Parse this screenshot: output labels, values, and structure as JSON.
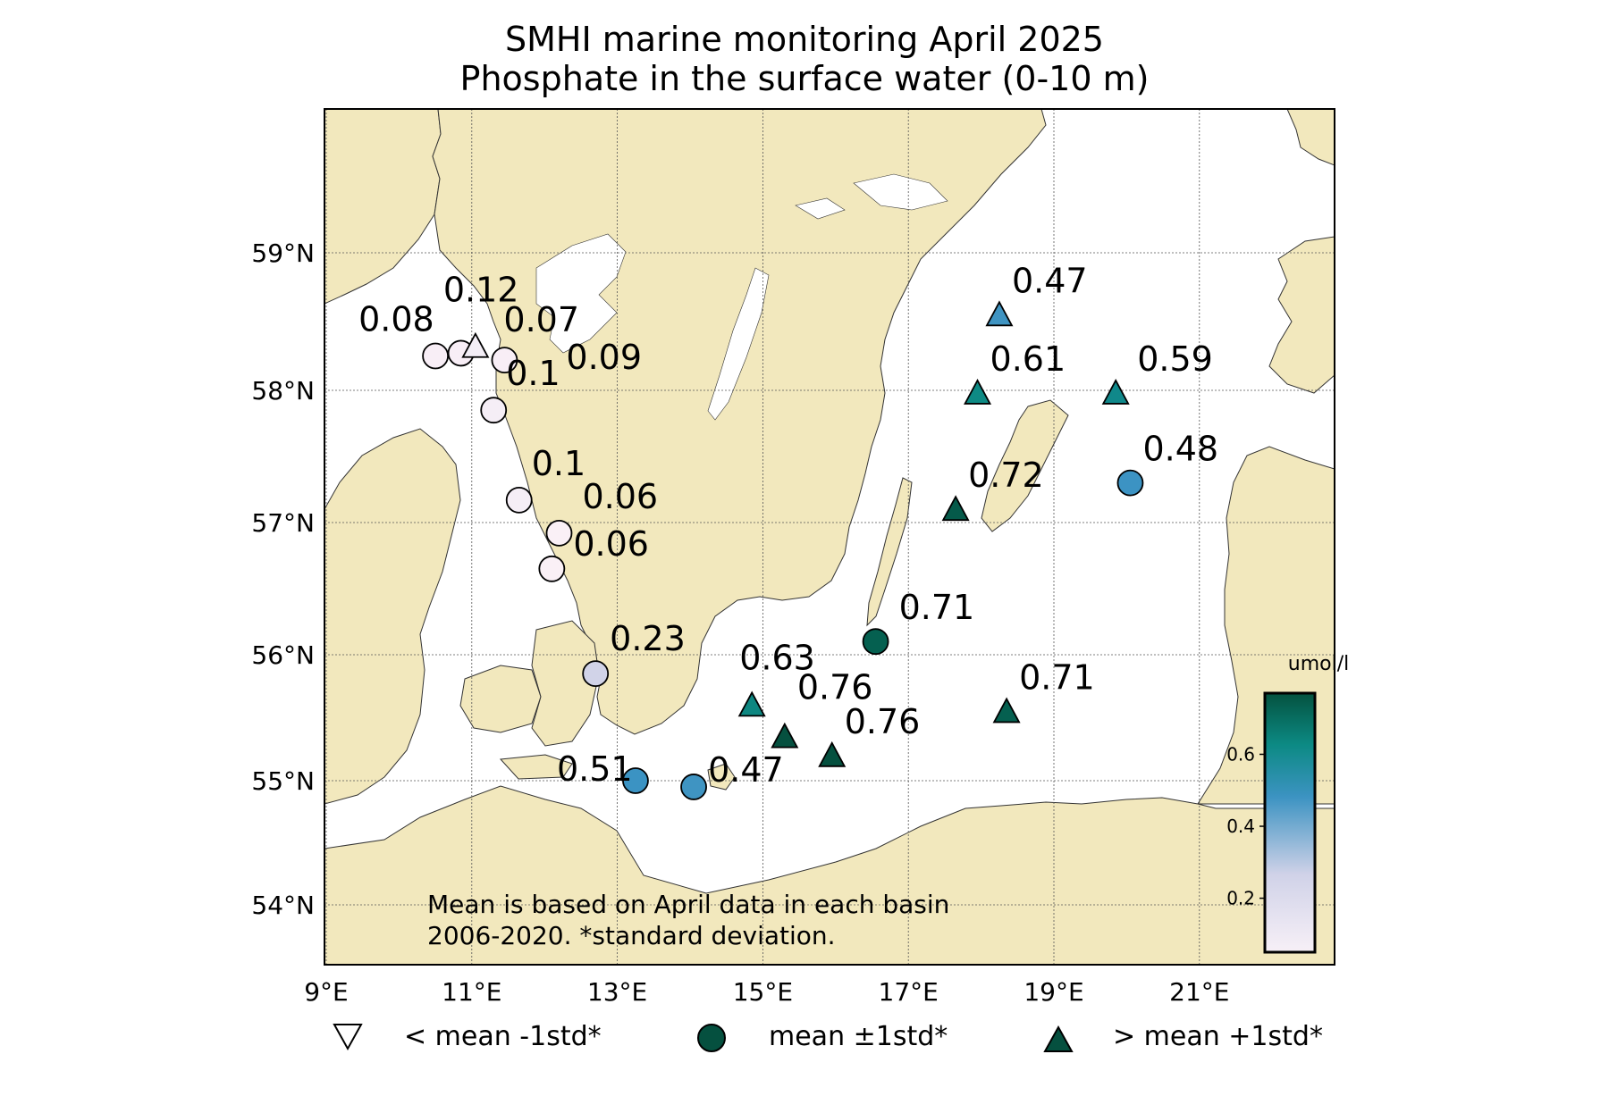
{
  "title_line1": "SMHI marine monitoring April 2025",
  "title_line2": "Phosphate in the surface water (0-10 m)",
  "axes": {
    "lon_labels": [
      "9°E",
      "11°E",
      "13°E",
      "15°E",
      "17°E",
      "19°E",
      "21°E"
    ],
    "lat_labels": [
      "54°N",
      "55°N",
      "56°N",
      "57°N",
      "58°N",
      "59°N"
    ]
  },
  "note_line1": "Mean is based on April data in each basin",
  "note_line2": "2006-2020. *standard deviation.",
  "colorbar": {
    "unit": "umol/l",
    "ticks": [
      "0.2",
      "0.4",
      "0.6"
    ],
    "colors": [
      "#f7f0f7",
      "#d0d2e8",
      "#3c93c2",
      "#0c8a84",
      "#04523f"
    ]
  },
  "legend": {
    "below": "< mean -1std*",
    "within": "mean ±1std*",
    "above": "> mean +1std*"
  },
  "colors": {
    "land": "#f2e8bd",
    "sea": "#ffffff",
    "coast": "#333333",
    "grid": "#555555"
  },
  "chart_data": {
    "type": "scatter",
    "xlim": [
      9,
      23
    ],
    "ylim": [
      53.6,
      59.8
    ],
    "grid": true,
    "stations": [
      {
        "lon": 10.5,
        "lat": 58.25,
        "value": "0.08",
        "marker": "circle",
        "color": "#f8eef6"
      },
      {
        "lon": 10.85,
        "lat": 58.27,
        "value": "",
        "marker": "circle",
        "color": "#f8eef6"
      },
      {
        "lon": 11.05,
        "lat": 58.32,
        "value": "0.12",
        "marker": "triangle-down",
        "color": "#f3eef6"
      },
      {
        "lon": 11.45,
        "lat": 58.22,
        "value": "0.07",
        "marker": "circle",
        "color": "#f8eef6"
      },
      {
        "lon": 11.45,
        "lat": 58.22,
        "value": "0.09",
        "marker": "none",
        "color": "#f8eef6"
      },
      {
        "lon": 11.3,
        "lat": 57.85,
        "value": "0.1",
        "marker": "circle",
        "color": "#f5eef6"
      },
      {
        "lon": 11.65,
        "lat": 57.17,
        "value": "0.1",
        "marker": "circle",
        "color": "#f5eef6"
      },
      {
        "lon": 12.2,
        "lat": 56.92,
        "value": "0.06",
        "marker": "circle",
        "color": "#faf0f6"
      },
      {
        "lon": 12.1,
        "lat": 56.65,
        "value": "0.06",
        "marker": "circle",
        "color": "#faf0f6"
      },
      {
        "lon": 12.7,
        "lat": 55.85,
        "value": "0.23",
        "marker": "circle",
        "color": "#d1d3e8"
      },
      {
        "lon": 13.25,
        "lat": 55.0,
        "value": "0.51",
        "marker": "circle",
        "color": "#3b93c3"
      },
      {
        "lon": 14.05,
        "lat": 54.95,
        "value": "0.47",
        "marker": "circle",
        "color": "#3f94c2"
      },
      {
        "lon": 14.85,
        "lat": 55.6,
        "value": "0.63",
        "marker": "triangle-up",
        "color": "#0e8781"
      },
      {
        "lon": 15.3,
        "lat": 55.35,
        "value": "0.76",
        "marker": "triangle-up",
        "color": "#05503f"
      },
      {
        "lon": 15.95,
        "lat": 55.2,
        "value": "0.76",
        "marker": "triangle-up",
        "color": "#05503f"
      },
      {
        "lon": 16.55,
        "lat": 56.1,
        "value": "0.71",
        "marker": "circle",
        "color": "#056050"
      },
      {
        "lon": 18.35,
        "lat": 55.55,
        "value": "0.71",
        "marker": "triangle-up",
        "color": "#056050"
      },
      {
        "lon": 17.65,
        "lat": 57.1,
        "value": "0.72",
        "marker": "triangle-up",
        "color": "#055a4a"
      },
      {
        "lon": 17.95,
        "lat": 57.98,
        "value": "0.61",
        "marker": "triangle-up",
        "color": "#0e8a84"
      },
      {
        "lon": 18.25,
        "lat": 58.55,
        "value": "0.47",
        "marker": "triangle-up",
        "color": "#3f94c2"
      },
      {
        "lon": 19.85,
        "lat": 57.98,
        "value": "0.59",
        "marker": "triangle-up",
        "color": "#10888a"
      },
      {
        "lon": 20.05,
        "lat": 57.3,
        "value": "0.48",
        "marker": "circle",
        "color": "#3c93c3"
      }
    ]
  }
}
